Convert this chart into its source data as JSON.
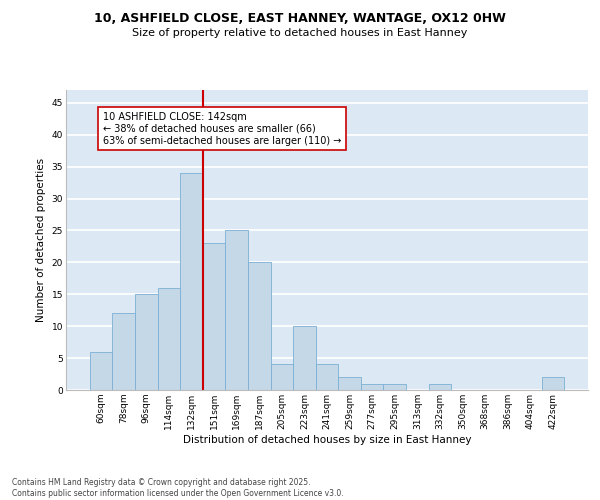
{
  "title_line1": "10, ASHFIELD CLOSE, EAST HANNEY, WANTAGE, OX12 0HW",
  "title_line2": "Size of property relative to detached houses in East Hanney",
  "xlabel": "Distribution of detached houses by size in East Hanney",
  "ylabel": "Number of detached properties",
  "categories": [
    "60sqm",
    "78sqm",
    "96sqm",
    "114sqm",
    "132sqm",
    "151sqm",
    "169sqm",
    "187sqm",
    "205sqm",
    "223sqm",
    "241sqm",
    "259sqm",
    "277sqm",
    "295sqm",
    "313sqm",
    "332sqm",
    "350sqm",
    "368sqm",
    "386sqm",
    "404sqm",
    "422sqm"
  ],
  "values": [
    6,
    12,
    15,
    16,
    34,
    23,
    25,
    20,
    4,
    10,
    4,
    2,
    1,
    1,
    0,
    1,
    0,
    0,
    0,
    0,
    2
  ],
  "bar_color": "#c5d8e8",
  "bar_edge_color": "#7bafd4",
  "vline_x": 4.5,
  "vline_color": "#cc0000",
  "annotation_text": "10 ASHFIELD CLOSE: 142sqm\n← 38% of detached houses are smaller (66)\n63% of semi-detached houses are larger (110) →",
  "annotation_box_color": "#ffffff",
  "annotation_box_edge_color": "#cc0000",
  "ylim": [
    0,
    47
  ],
  "yticks": [
    0,
    5,
    10,
    15,
    20,
    25,
    30,
    35,
    40,
    45
  ],
  "background_color": "#dce9f5",
  "grid_color": "#ffffff",
  "footer_text": "Contains HM Land Registry data © Crown copyright and database right 2025.\nContains public sector information licensed under the Open Government Licence v3.0.",
  "title_fontsize": 9,
  "subtitle_fontsize": 8,
  "axis_label_fontsize": 7.5,
  "tick_fontsize": 6.5,
  "annotation_fontsize": 7,
  "footer_fontsize": 5.5
}
